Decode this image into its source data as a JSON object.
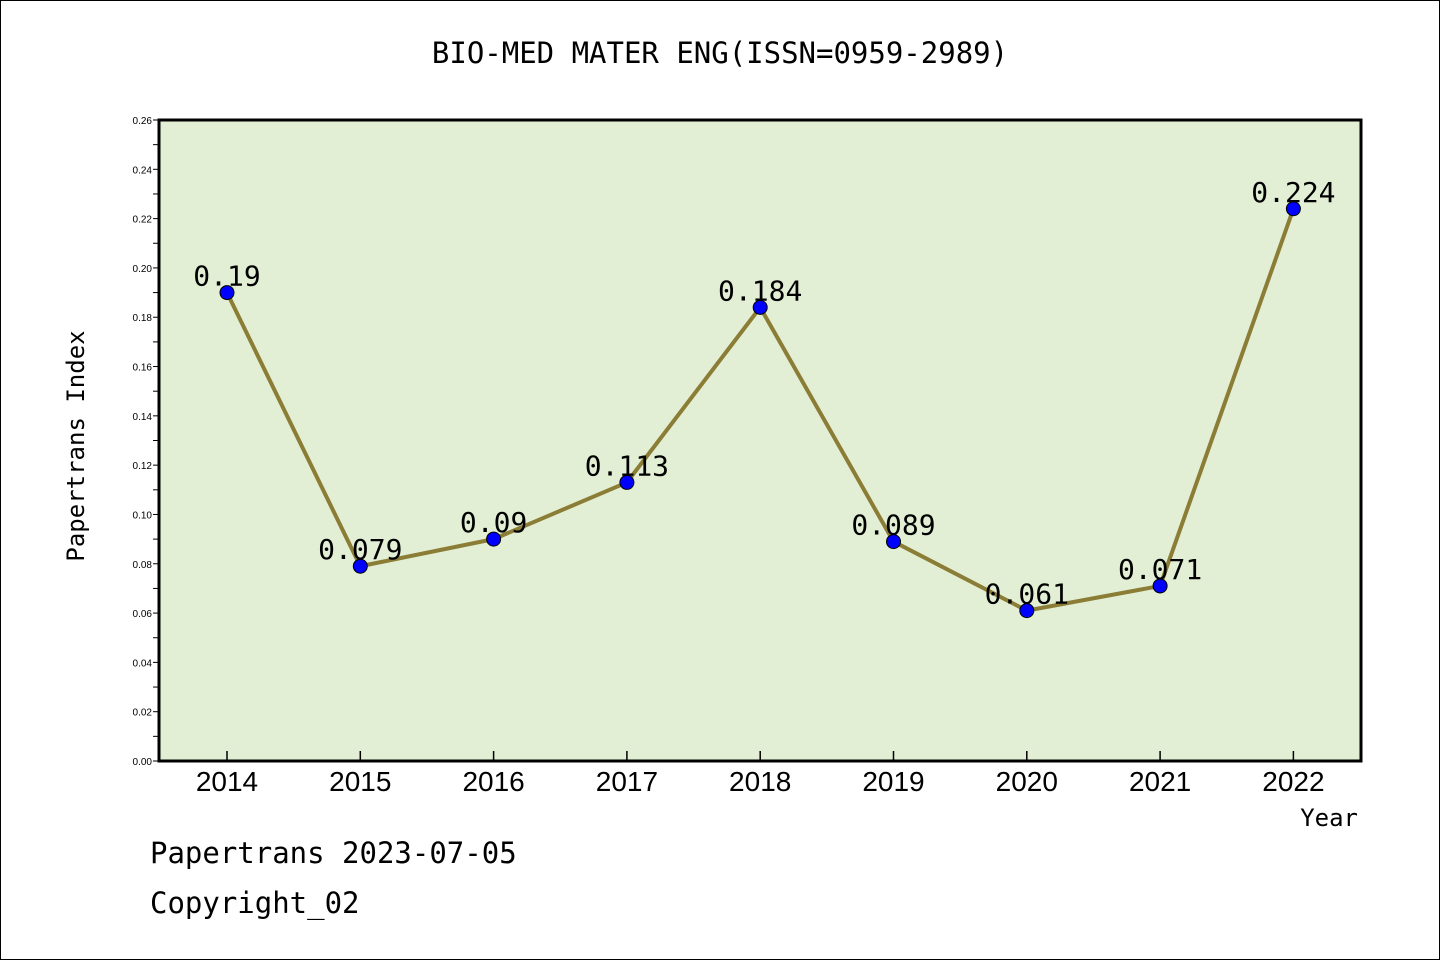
{
  "footer": {
    "date_text": "Papertrans 2023-07-05",
    "copyright_text": "Copyright_02"
  },
  "colors": {
    "plot_background": "#e2efd5",
    "line": "#8b7d35",
    "marker": "#0000ff"
  },
  "chart_data": {
    "type": "line",
    "title": "BIO-MED MATER ENG(ISSN=0959-2989)",
    "xlabel": "Year",
    "ylabel": "Papertrans Index",
    "categories": [
      "2014",
      "2015",
      "2016",
      "2017",
      "2018",
      "2019",
      "2020",
      "2021",
      "2022"
    ],
    "series": [
      {
        "values": [
          0.19,
          0.079,
          0.09,
          0.113,
          0.184,
          0.089,
          0.061,
          0.071,
          0.224
        ],
        "labels": [
          "0.19",
          "0.079",
          "0.09",
          "0.113",
          "0.184",
          "0.089",
          "0.061",
          "0.071",
          "0.224"
        ]
      }
    ],
    "ylim": [
      0,
      0.26
    ],
    "yticks": [
      "0.00",
      "0.02",
      "0.04",
      "0.06",
      "0.08",
      "0.10",
      "0.12",
      "0.14",
      "0.16",
      "0.18",
      "0.20",
      "0.22",
      "0.24",
      "0.26"
    ],
    "grid": false,
    "legend": "none"
  }
}
